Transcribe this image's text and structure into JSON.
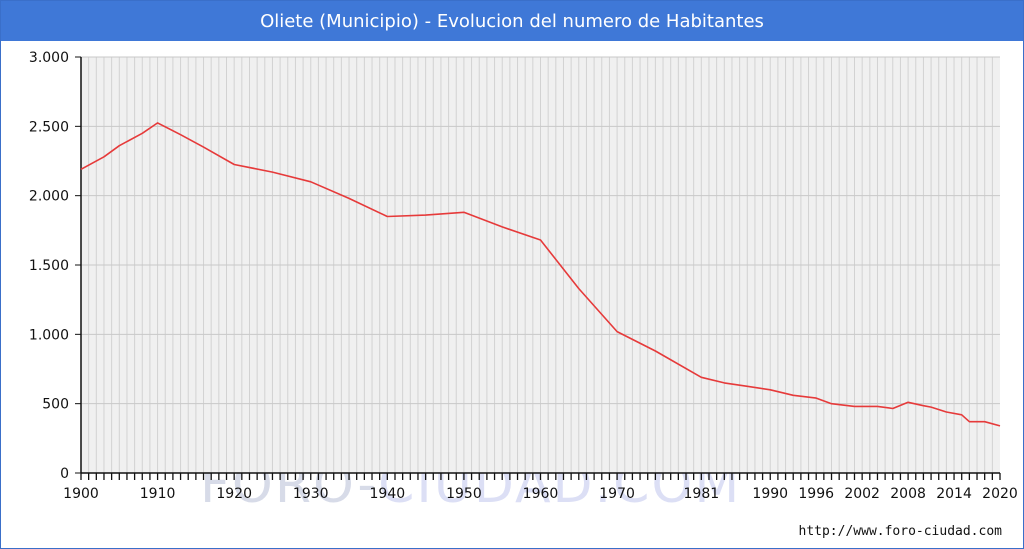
{
  "header": {
    "title": "Oliete (Municipio) - Evolucion del numero de Habitantes"
  },
  "footer": {
    "url": "http://www.foro-ciudad.com"
  },
  "watermark": {
    "part_a": "FORO-",
    "part_b": "CIUDAD.COM"
  },
  "colors": {
    "title_bar": "#3f78d7",
    "line": "#e63a3a",
    "plot_bg": "#f0f0f0",
    "grid": "#d2d2d2"
  },
  "chart_data": {
    "type": "line",
    "title": "Oliete (Municipio) - Evolucion del numero de Habitantes",
    "xlabel": "",
    "ylabel": "",
    "xlim": [
      1900,
      2020
    ],
    "ylim": [
      0,
      3000
    ],
    "grid": true,
    "x_ticks": [
      1900,
      1910,
      1920,
      1930,
      1940,
      1950,
      1960,
      1970,
      1981,
      1990,
      1996,
      2002,
      2008,
      2014,
      2020
    ],
    "y_ticks": [
      {
        "value": 0,
        "label": "0"
      },
      {
        "value": 500,
        "label": "500"
      },
      {
        "value": 1000,
        "label": "1.000"
      },
      {
        "value": 1500,
        "label": "1.500"
      },
      {
        "value": 2000,
        "label": "2.000"
      },
      {
        "value": 2500,
        "label": "2.500"
      },
      {
        "value": 3000,
        "label": "3.000"
      }
    ],
    "series": [
      {
        "points": [
          [
            1900,
            2190
          ],
          [
            1903,
            2280
          ],
          [
            1905,
            2360
          ],
          [
            1908,
            2450
          ],
          [
            1910,
            2525
          ],
          [
            1913,
            2440
          ],
          [
            1916,
            2350
          ],
          [
            1920,
            2225
          ],
          [
            1925,
            2170
          ],
          [
            1930,
            2100
          ],
          [
            1935,
            1980
          ],
          [
            1940,
            1850
          ],
          [
            1945,
            1860
          ],
          [
            1950,
            1880
          ],
          [
            1955,
            1775
          ],
          [
            1960,
            1680
          ],
          [
            1965,
            1330
          ],
          [
            1970,
            1020
          ],
          [
            1975,
            880
          ],
          [
            1981,
            690
          ],
          [
            1984,
            650
          ],
          [
            1987,
            625
          ],
          [
            1990,
            600
          ],
          [
            1993,
            560
          ],
          [
            1996,
            540
          ],
          [
            1998,
            500
          ],
          [
            2001,
            480
          ],
          [
            2004,
            480
          ],
          [
            2006,
            465
          ],
          [
            2008,
            510
          ],
          [
            2010,
            485
          ],
          [
            2011,
            475
          ],
          [
            2013,
            440
          ],
          [
            2015,
            420
          ],
          [
            2016,
            370
          ],
          [
            2018,
            370
          ],
          [
            2020,
            340
          ]
        ]
      }
    ]
  }
}
